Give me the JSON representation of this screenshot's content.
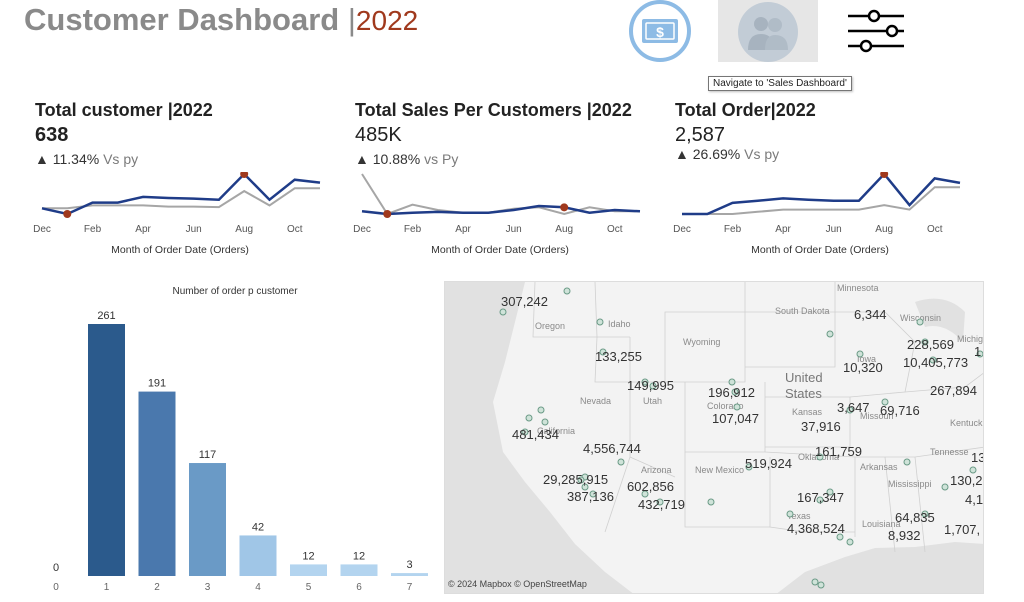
{
  "header": {
    "title": "Customer Dashboard",
    "separator": "|",
    "year": "2022"
  },
  "nav": {
    "sales_icon": "dollar-bill-icon",
    "customer_icon": "users-icon",
    "filter_icon": "sliders-icon",
    "tooltip": "Navigate to 'Sales Dashboard'"
  },
  "kpis": [
    {
      "title": "Total customer |2022",
      "value": "638",
      "delta": "▲ 11.34%",
      "vs": "Vs py",
      "xlabel": "Month of Order Date (Orders)"
    },
    {
      "title": "Total Sales Per Customers |2022",
      "value": "485K",
      "delta": "▲ 10.88%",
      "vs": "vs Py",
      "xlabel": "Month of Order Date (Orders)"
    },
    {
      "title": "Total Order|2022",
      "value": "2,587",
      "delta": "▲ 26.69%",
      "vs": "Vs py",
      "xlabel": "Month of Order Date (Orders)"
    }
  ],
  "colors": {
    "current": "#1f3c88",
    "previous": "#a6a6a6",
    "marker": "#a0391d",
    "bar_dark": "#2b5a8c",
    "bar_light": "#a7cbe9"
  },
  "chart_data": [
    {
      "type": "line",
      "x_ticks": [
        "Dec",
        "Feb",
        "Apr",
        "Jun",
        "Aug",
        "Oct",
        "Dec"
      ],
      "series": [
        {
          "values": [
            4,
            3,
            5,
            5,
            6,
            5.8,
            5.7,
            5.5,
            10,
            5.5,
            9,
            8.5
          ]
        },
        {
          "values": [
            4,
            4,
            4.5,
            4.5,
            4.5,
            4.3,
            4.3,
            4.2,
            7,
            4.5,
            7.5,
            7.5
          ]
        }
      ],
      "markers": [
        1,
        8
      ]
    },
    {
      "type": "line",
      "x_ticks": [
        "Dec",
        "Feb",
        "Apr",
        "Jun",
        "Aug",
        "Oct",
        "Dec"
      ],
      "series": [
        {
          "values": [
            6,
            5,
            5.5,
            5.8,
            5.5,
            5.5,
            6.5,
            8,
            7.5,
            5.5,
            6.5,
            6
          ]
        },
        {
          "values": [
            20,
            5,
            8.5,
            6.5,
            5.5,
            5.5,
            7,
            7.5,
            5,
            7.5,
            6,
            6
          ]
        }
      ],
      "markers": [
        1,
        8
      ]
    },
    {
      "type": "line",
      "x_ticks": [
        "Dec",
        "Feb",
        "Apr",
        "Jun",
        "Aug",
        "Oct",
        "Dec"
      ],
      "series": [
        {
          "values": [
            4,
            4,
            6.5,
            7,
            7.5,
            7.2,
            7,
            7,
            13,
            6,
            12,
            11
          ]
        },
        {
          "values": [
            4,
            4,
            4,
            4.5,
            5,
            5,
            5,
            5,
            6,
            5,
            10,
            10
          ]
        }
      ],
      "markers": [
        8
      ]
    },
    {
      "type": "bar",
      "title": "Number of order p customer",
      "categories": [
        "0",
        "1",
        "2",
        "3",
        "4",
        "5",
        "6",
        "7"
      ],
      "values": [
        0,
        261,
        191,
        117,
        42,
        12,
        12,
        3
      ]
    }
  ],
  "map": {
    "credit": "© 2024 Mapbox © OpenStreetMap",
    "region_labels": [
      "Minnesota",
      "South Dakota",
      "Wisconsin",
      "Michiga",
      "Oregon",
      "Idaho",
      "Wyoming",
      "Iowa",
      "United",
      "States",
      "Nevada",
      "Utah",
      "Colorado",
      "Kansas",
      "Missouri",
      "Kentuck",
      "California",
      "Oklahoma",
      "Tennesse",
      "Arizona",
      "New Mexico",
      "Arkansas",
      "Mississippi",
      "Texas",
      "Louisiana"
    ],
    "values": [
      "307,242",
      "6,344",
      "228,569",
      "1",
      "133,255",
      "10,320",
      "10,405,773",
      "149,995",
      "196,912",
      "267,894",
      "107,047",
      "3,647",
      "69,716",
      "481,434",
      "37,916",
      "4,556,744",
      "161,759",
      "13",
      "519,924",
      "29,285,915",
      "130,2",
      "602,856",
      "387,136",
      "167,347",
      "4,1",
      "432,719",
      "64,835",
      "4,368,524",
      "1,707,",
      "8,932"
    ]
  }
}
